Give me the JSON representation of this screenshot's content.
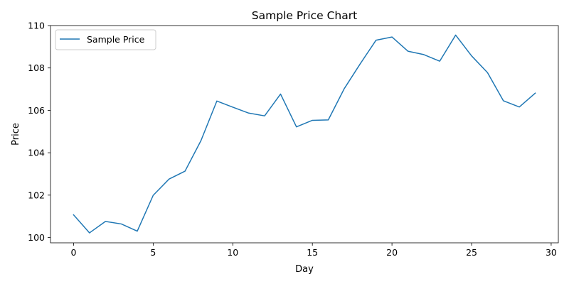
{
  "chart_data": {
    "type": "line",
    "title": "Sample Price Chart",
    "xlabel": "Day",
    "ylabel": "Price",
    "xlim": [
      -1.45,
      30.45
    ],
    "ylim": [
      99.75,
      110.0
    ],
    "xticks": [
      0,
      5,
      10,
      15,
      20,
      25,
      30
    ],
    "yticks": [
      100,
      102,
      104,
      106,
      108,
      110
    ],
    "grid": false,
    "legend_position": "top-left",
    "series": [
      {
        "name": "Sample Price",
        "color": "#1f77b4",
        "x": [
          0,
          1,
          2,
          3,
          4,
          5,
          6,
          7,
          8,
          9,
          10,
          11,
          12,
          13,
          14,
          15,
          16,
          17,
          18,
          19,
          20,
          21,
          22,
          23,
          24,
          25,
          26,
          27,
          28,
          29
        ],
        "y": [
          101.07,
          100.22,
          100.76,
          100.64,
          100.3,
          101.99,
          102.76,
          103.13,
          104.57,
          106.44,
          106.15,
          105.87,
          105.74,
          106.77,
          105.22,
          105.53,
          105.55,
          107.02,
          108.19,
          109.31,
          109.46,
          108.79,
          108.63,
          108.32,
          109.55,
          108.57,
          107.78,
          106.45,
          106.16,
          106.81
        ]
      }
    ]
  }
}
